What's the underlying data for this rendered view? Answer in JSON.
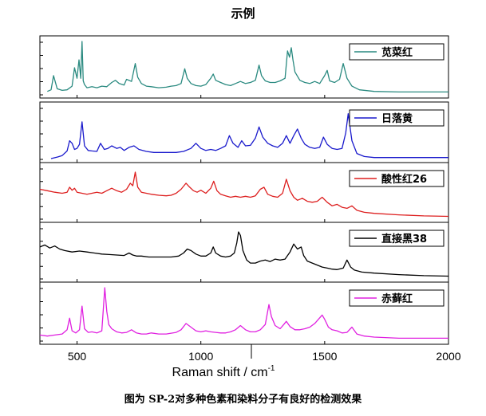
{
  "figure": {
    "title": "示例",
    "caption": "图为 SP-2对多种色素和染料分子有良好的检测效果"
  },
  "chart_data": {
    "type": "line",
    "title": "示例",
    "xlabel": "Raman shift / cm",
    "xlabel_superscript": "-1",
    "xlim": [
      350,
      2000
    ],
    "xticks": [
      500,
      1000,
      1500,
      2000
    ],
    "ylabel": "",
    "stacked_panels": true,
    "grid": false,
    "legend_placement": "top-right of each panel",
    "series": [
      {
        "name": "苋菜红",
        "color": "#2a8a80",
        "x": [
          380,
          395,
          405,
          420,
          440,
          460,
          480,
          490,
          500,
          508,
          515,
          520,
          525,
          530,
          540,
          560,
          580,
          600,
          620,
          640,
          655,
          670,
          690,
          700,
          720,
          735,
          745,
          760,
          780,
          800,
          830,
          860,
          880,
          900,
          920,
          935,
          945,
          960,
          980,
          1000,
          1020,
          1040,
          1050,
          1060,
          1080,
          1100,
          1120,
          1140,
          1160,
          1180,
          1200,
          1220,
          1235,
          1245,
          1260,
          1280,
          1300,
          1320,
          1340,
          1350,
          1358,
          1365,
          1372,
          1380,
          1400,
          1420,
          1440,
          1460,
          1480,
          1500,
          1510,
          1520,
          1540,
          1560,
          1575,
          1590,
          1610,
          1640,
          1700,
          1800,
          1900,
          2000
        ],
        "y": [
          0.05,
          0.08,
          0.35,
          0.1,
          0.07,
          0.08,
          0.15,
          0.5,
          0.3,
          0.65,
          0.3,
          1.0,
          0.25,
          0.18,
          0.12,
          0.14,
          0.12,
          0.15,
          0.14,
          0.22,
          0.26,
          0.2,
          0.17,
          0.28,
          0.24,
          0.58,
          0.32,
          0.2,
          0.15,
          0.14,
          0.12,
          0.13,
          0.15,
          0.16,
          0.2,
          0.48,
          0.3,
          0.2,
          0.16,
          0.15,
          0.18,
          0.3,
          0.38,
          0.26,
          0.22,
          0.18,
          0.16,
          0.2,
          0.24,
          0.2,
          0.22,
          0.26,
          0.55,
          0.35,
          0.25,
          0.22,
          0.22,
          0.25,
          0.3,
          0.82,
          0.7,
          0.88,
          0.65,
          0.42,
          0.26,
          0.22,
          0.2,
          0.24,
          0.2,
          0.35,
          0.45,
          0.25,
          0.22,
          0.28,
          0.58,
          0.3,
          0.15,
          0.08,
          0.05,
          0.04,
          0.04,
          0.04
        ]
      },
      {
        "name": "日落黄",
        "color": "#1a1acc",
        "x": [
          395,
          420,
          440,
          460,
          470,
          480,
          490,
          500,
          510,
          520,
          530,
          545,
          560,
          580,
          595,
          610,
          625,
          640,
          660,
          675,
          690,
          710,
          730,
          750,
          780,
          810,
          840,
          870,
          900,
          930,
          960,
          980,
          1000,
          1020,
          1040,
          1060,
          1080,
          1100,
          1115,
          1130,
          1150,
          1165,
          1180,
          1200,
          1220,
          1235,
          1250,
          1270,
          1290,
          1310,
          1330,
          1345,
          1360,
          1375,
          1390,
          1405,
          1420,
          1440,
          1460,
          1480,
          1495,
          1510,
          1530,
          1550,
          1570,
          1585,
          1595,
          1610,
          1630,
          1660,
          1700,
          1800,
          1900,
          2000
        ],
        "y": [
          0.0,
          0.03,
          0.06,
          0.15,
          0.35,
          0.3,
          0.18,
          0.2,
          0.28,
          0.72,
          0.25,
          0.16,
          0.15,
          0.14,
          0.3,
          0.18,
          0.2,
          0.25,
          0.2,
          0.22,
          0.16,
          0.22,
          0.25,
          0.18,
          0.14,
          0.12,
          0.12,
          0.12,
          0.12,
          0.14,
          0.2,
          0.3,
          0.2,
          0.16,
          0.18,
          0.16,
          0.2,
          0.25,
          0.45,
          0.3,
          0.22,
          0.35,
          0.25,
          0.26,
          0.4,
          0.62,
          0.42,
          0.3,
          0.25,
          0.22,
          0.3,
          0.45,
          0.3,
          0.45,
          0.58,
          0.4,
          0.28,
          0.22,
          0.2,
          0.22,
          0.42,
          0.28,
          0.2,
          0.18,
          0.2,
          0.5,
          0.88,
          0.35,
          0.1,
          0.04,
          0.02,
          0.02,
          0.02,
          0.02
        ]
      },
      {
        "name": "酸性红26",
        "color": "#dd1f1f",
        "x": [
          350,
          380,
          410,
          440,
          460,
          470,
          480,
          490,
          500,
          520,
          540,
          560,
          580,
          600,
          620,
          640,
          660,
          680,
          700,
          715,
          725,
          735,
          745,
          760,
          780,
          800,
          830,
          860,
          880,
          900,
          920,
          940,
          955,
          970,
          985,
          1000,
          1020,
          1040,
          1052,
          1065,
          1080,
          1100,
          1120,
          1140,
          1160,
          1180,
          1200,
          1220,
          1240,
          1255,
          1270,
          1290,
          1310,
          1330,
          1345,
          1360,
          1375,
          1390,
          1410,
          1430,
          1450,
          1470,
          1490,
          1510,
          1530,
          1550,
          1570,
          1590,
          1610,
          1630,
          1660,
          1700,
          1800,
          1900,
          2000
        ],
        "y": [
          0.58,
          0.55,
          0.52,
          0.5,
          0.52,
          0.62,
          0.56,
          0.6,
          0.52,
          0.5,
          0.48,
          0.5,
          0.52,
          0.5,
          0.55,
          0.6,
          0.55,
          0.52,
          0.58,
          0.7,
          0.65,
          0.92,
          0.62,
          0.52,
          0.5,
          0.48,
          0.46,
          0.45,
          0.46,
          0.5,
          0.58,
          0.7,
          0.62,
          0.55,
          0.52,
          0.56,
          0.5,
          0.6,
          0.74,
          0.55,
          0.48,
          0.45,
          0.42,
          0.44,
          0.42,
          0.44,
          0.42,
          0.45,
          0.58,
          0.62,
          0.48,
          0.44,
          0.42,
          0.5,
          0.78,
          0.55,
          0.42,
          0.36,
          0.4,
          0.34,
          0.32,
          0.34,
          0.42,
          0.32,
          0.25,
          0.28,
          0.22,
          0.2,
          0.25,
          0.16,
          0.12,
          0.1,
          0.07,
          0.05,
          0.04
        ]
      },
      {
        "name": "直接黑38",
        "color": "#000000",
        "x": [
          350,
          370,
          390,
          410,
          430,
          450,
          480,
          510,
          540,
          570,
          600,
          630,
          660,
          690,
          710,
          725,
          740,
          760,
          790,
          820,
          850,
          880,
          910,
          930,
          945,
          960,
          980,
          1000,
          1020,
          1040,
          1050,
          1060,
          1080,
          1100,
          1120,
          1135,
          1145,
          1152,
          1160,
          1170,
          1185,
          1200,
          1220,
          1240,
          1260,
          1280,
          1300,
          1320,
          1340,
          1360,
          1375,
          1390,
          1405,
          1415,
          1430,
          1450,
          1470,
          1490,
          1510,
          1530,
          1550,
          1575,
          1590,
          1605,
          1620,
          1650,
          1700,
          1800,
          1900,
          2000
        ],
        "y": [
          0.62,
          0.66,
          0.6,
          0.64,
          0.58,
          0.55,
          0.52,
          0.54,
          0.52,
          0.5,
          0.48,
          0.47,
          0.46,
          0.45,
          0.5,
          0.46,
          0.44,
          0.44,
          0.42,
          0.42,
          0.42,
          0.42,
          0.44,
          0.5,
          0.58,
          0.55,
          0.48,
          0.44,
          0.44,
          0.5,
          0.62,
          0.5,
          0.44,
          0.42,
          0.44,
          0.5,
          0.7,
          0.92,
          0.85,
          0.55,
          0.36,
          0.3,
          0.3,
          0.34,
          0.36,
          0.33,
          0.38,
          0.36,
          0.38,
          0.52,
          0.68,
          0.58,
          0.62,
          0.45,
          0.34,
          0.3,
          0.26,
          0.22,
          0.2,
          0.18,
          0.17,
          0.2,
          0.36,
          0.22,
          0.16,
          0.12,
          0.1,
          0.07,
          0.05,
          0.04
        ]
      },
      {
        "name": "赤藓红",
        "color": "#e020e0",
        "x": [
          350,
          380,
          410,
          440,
          460,
          470,
          480,
          495,
          510,
          520,
          530,
          545,
          560,
          580,
          600,
          612,
          620,
          628,
          640,
          660,
          680,
          700,
          720,
          740,
          760,
          780,
          800,
          830,
          860,
          900,
          920,
          940,
          960,
          980,
          1000,
          1020,
          1040,
          1060,
          1080,
          1100,
          1120,
          1140,
          1160,
          1180,
          1200,
          1220,
          1240,
          1260,
          1275,
          1285,
          1300,
          1320,
          1335,
          1345,
          1360,
          1380,
          1400,
          1420,
          1440,
          1460,
          1475,
          1490,
          1500,
          1515,
          1530,
          1550,
          1570,
          1590,
          1610,
          1630,
          1660,
          1700,
          1800,
          1900,
          2000
        ],
        "y": [
          0.1,
          0.08,
          0.1,
          0.12,
          0.2,
          0.42,
          0.18,
          0.14,
          0.2,
          0.65,
          0.22,
          0.15,
          0.16,
          0.14,
          0.18,
          1.0,
          0.55,
          0.3,
          0.22,
          0.16,
          0.14,
          0.15,
          0.2,
          0.14,
          0.12,
          0.12,
          0.14,
          0.12,
          0.12,
          0.15,
          0.2,
          0.32,
          0.25,
          0.18,
          0.16,
          0.18,
          0.16,
          0.15,
          0.14,
          0.14,
          0.16,
          0.2,
          0.28,
          0.2,
          0.16,
          0.16,
          0.2,
          0.3,
          0.68,
          0.45,
          0.28,
          0.22,
          0.3,
          0.36,
          0.26,
          0.2,
          0.2,
          0.22,
          0.25,
          0.32,
          0.4,
          0.48,
          0.4,
          0.25,
          0.2,
          0.18,
          0.14,
          0.15,
          0.25,
          0.12,
          0.08,
          0.06,
          0.04,
          0.04,
          0.04
        ]
      }
    ]
  }
}
